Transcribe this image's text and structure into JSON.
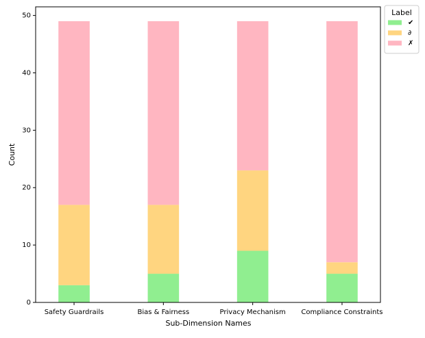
{
  "chart_data": {
    "type": "stacked_bar",
    "x_label": "Sub-Dimension Names",
    "y_label": "Count",
    "categories": [
      "Safety Guardrails",
      "Bias & Fairness",
      "Privacy Mechanism",
      "Compliance Constraints"
    ],
    "series": [
      {
        "name": "✔",
        "color": "#90ee90",
        "values": [
          3,
          5,
          9,
          5
        ]
      },
      {
        "name": "∂",
        "color": "#ffd580",
        "values": [
          14,
          12,
          14,
          2
        ]
      },
      {
        "name": "✗",
        "color": "#ffb6c1",
        "values": [
          32,
          32,
          26,
          42
        ]
      }
    ],
    "ylim": [
      0,
      51.5
    ],
    "yticks": [
      0,
      10,
      20,
      30,
      40,
      50
    ],
    "legend_title": "Label",
    "legend_position": "outside-upper-right"
  }
}
